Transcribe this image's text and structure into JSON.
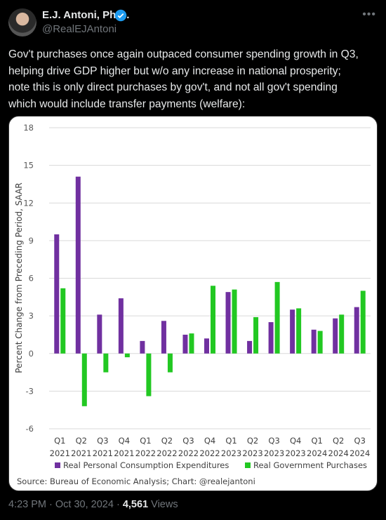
{
  "header": {
    "name": "E.J. Antoni, Ph.D.",
    "handle": "@RealEJAntoni"
  },
  "tweet_lines": [
    "Gov't purchases once again outpaced consumer spending growth in Q3,",
    "helping drive GDP higher but w/o any increase in national prosperity;",
    "note this is only direct purchases by gov't, and not all gov't spending",
    "which would include transfer payments (welfare):"
  ],
  "chart_data": {
    "type": "bar",
    "y_label": "Percent Change from Preceding Period, SAAR",
    "source": "Source: Bureau of Economic Analysis; Chart: @realejantoni",
    "categories": [
      [
        "Q1",
        "2021"
      ],
      [
        "Q2",
        "2021"
      ],
      [
        "Q3",
        "2021"
      ],
      [
        "Q4",
        "2021"
      ],
      [
        "Q1",
        "2022"
      ],
      [
        "Q2",
        "2022"
      ],
      [
        "Q3",
        "2022"
      ],
      [
        "Q4",
        "2022"
      ],
      [
        "Q1",
        "2023"
      ],
      [
        "Q2",
        "2023"
      ],
      [
        "Q3",
        "2023"
      ],
      [
        "Q4",
        "2023"
      ],
      [
        "Q1",
        "2024"
      ],
      [
        "Q2",
        "2024"
      ],
      [
        "Q3",
        "2024"
      ]
    ],
    "series": [
      {
        "name": "Real Personal Consumption Expenditures",
        "color": "#7030a0",
        "values": [
          9.5,
          14.1,
          3.1,
          4.4,
          1.0,
          2.6,
          1.5,
          1.2,
          4.9,
          1.0,
          2.5,
          3.5,
          1.9,
          2.8,
          3.7
        ]
      },
      {
        "name": "Real Government Purchases",
        "color": "#22c822",
        "values": [
          5.2,
          -4.2,
          -1.5,
          -0.3,
          -3.4,
          -1.5,
          1.6,
          5.4,
          5.1,
          2.9,
          5.7,
          3.6,
          1.8,
          3.1,
          5.0
        ]
      }
    ],
    "ylim": [
      -6,
      18
    ],
    "yticks": [
      -6,
      -3,
      0,
      3,
      6,
      9,
      12,
      15,
      18
    ],
    "grid": true,
    "legend": "bottom"
  },
  "footer": {
    "timestamp": "4:23 PM · Oct 30, 2024",
    "separator": "·",
    "views_count": "4,561",
    "views_label": "Views"
  }
}
